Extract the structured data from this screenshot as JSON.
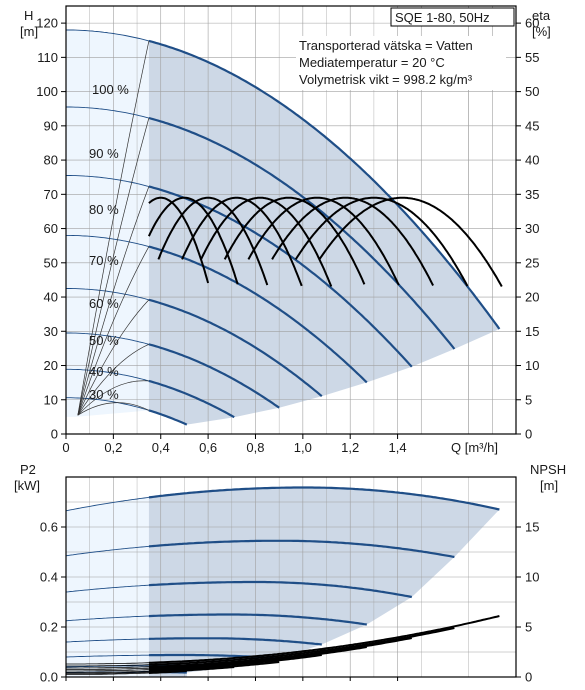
{
  "chart_data": [
    {
      "type": "line",
      "title": "SQE 1-80, 50Hz",
      "annotations": [
        "Transporterad vätska = Vatten",
        "Mediatemperatur = 20 °C",
        "Volymetrisk vikt = 998.2 kg/m³"
      ],
      "xlabel": "Q [m³/h]",
      "ylabel_left": [
        "H",
        "[m]"
      ],
      "ylabel_right": [
        "eta",
        "[%]"
      ],
      "xlim": [
        0,
        1.9
      ],
      "ylim_left": [
        0,
        125
      ],
      "ylim_right": [
        0,
        62.5
      ],
      "x_ticks": [
        "0",
        "0,2",
        "0,4",
        "0,6",
        "0,8",
        "1,0",
        "1,2",
        "1,4"
      ],
      "x_tick_values": [
        0,
        0.2,
        0.4,
        0.6,
        0.8,
        1.0,
        1.2,
        1.4
      ],
      "y_ticks_left": [
        0,
        10,
        20,
        30,
        40,
        50,
        60,
        70,
        80,
        90,
        100,
        110,
        120
      ],
      "y_ticks_right": [
        0,
        5,
        10,
        15,
        20,
        25,
        30,
        35,
        40,
        45,
        50,
        55,
        60
      ],
      "grid": true,
      "operating_range_q_min": 0.35,
      "series": [
        {
          "name": "100 %",
          "h0": 118,
          "q_max": 1.83
        },
        {
          "name": "90 %",
          "h0": 95.5,
          "q_max": 1.64
        },
        {
          "name": "80 %",
          "h0": 75.5,
          "q_max": 1.46
        },
        {
          "name": "70 %",
          "h0": 58,
          "q_max": 1.27
        },
        {
          "name": "60 %",
          "h0": 42.5,
          "q_max": 1.08
        },
        {
          "name": "50 %",
          "h0": 29.5,
          "q_max": 0.9
        },
        {
          "name": "40 %",
          "h0": 18.9,
          "q_max": 0.71
        },
        {
          "name": "30 %",
          "h0": 10.6,
          "q_max": 0.51
        }
      ],
      "efficiency_peak_eta": 34.5,
      "efficiency_peak_q": [
        0.4,
        0.5,
        0.6,
        0.72,
        0.82,
        0.94,
        1.06,
        1.18,
        1.3,
        1.42
      ]
    },
    {
      "type": "line",
      "ylabel_left": [
        "P2",
        "[kW]"
      ],
      "ylabel_right": [
        "NPSH",
        "[m]"
      ],
      "xlim": [
        0,
        1.9
      ],
      "ylim_left": [
        0,
        0.8
      ],
      "ylim_right": [
        0,
        20
      ],
      "y_ticks_left": [
        "0.0",
        "0.2",
        "0.4",
        "0.6"
      ],
      "y_tick_values_left": [
        0,
        0.2,
        0.4,
        0.6
      ],
      "y_ticks_right": [
        0,
        5,
        10,
        15
      ],
      "grid": true,
      "power_series": [
        {
          "p_start": 0.665,
          "p_peak": 0.758,
          "p_end": 0.67,
          "q_max": 1.83
        },
        {
          "p_start": 0.485,
          "p_peak": 0.545,
          "p_end": 0.48,
          "q_max": 1.64
        },
        {
          "p_start": 0.34,
          "p_peak": 0.38,
          "p_end": 0.32,
          "q_max": 1.46
        },
        {
          "p_start": 0.225,
          "p_peak": 0.25,
          "p_end": 0.21,
          "q_max": 1.27
        },
        {
          "p_start": 0.14,
          "p_peak": 0.155,
          "p_end": 0.13,
          "q_max": 1.08
        },
        {
          "p_start": 0.08,
          "p_peak": 0.088,
          "p_end": 0.075,
          "q_max": 0.9
        },
        {
          "p_start": 0.04,
          "p_peak": 0.045,
          "p_end": 0.04,
          "q_max": 0.71
        },
        {
          "p_start": 0.018,
          "p_peak": 0.02,
          "p_end": 0.018,
          "q_max": 0.51
        }
      ],
      "npsh_series": [
        {
          "n0": 1.3,
          "n_end": 6.1,
          "q_max": 1.83
        },
        {
          "n0": 1.1,
          "n_end": 4.9,
          "q_max": 1.64
        },
        {
          "n0": 0.9,
          "n_end": 3.9,
          "q_max": 1.46
        },
        {
          "n0": 0.75,
          "n_end": 3.0,
          "q_max": 1.27
        },
        {
          "n0": 0.6,
          "n_end": 2.2,
          "q_max": 1.08
        },
        {
          "n0": 0.45,
          "n_end": 1.5,
          "q_max": 0.9
        },
        {
          "n0": 0.35,
          "n_end": 1.0,
          "q_max": 0.71
        },
        {
          "n0": 0.25,
          "n_end": 0.6,
          "q_max": 0.51
        }
      ]
    }
  ],
  "colors": {
    "curve": "#1f4e87",
    "thin_curve": "#1f4e87",
    "eta_curve": "#000000",
    "region_fill": "#cdd8e6",
    "light_fill": "#eef6fe",
    "grid": "#a0a0a0",
    "frame": "#000000"
  }
}
